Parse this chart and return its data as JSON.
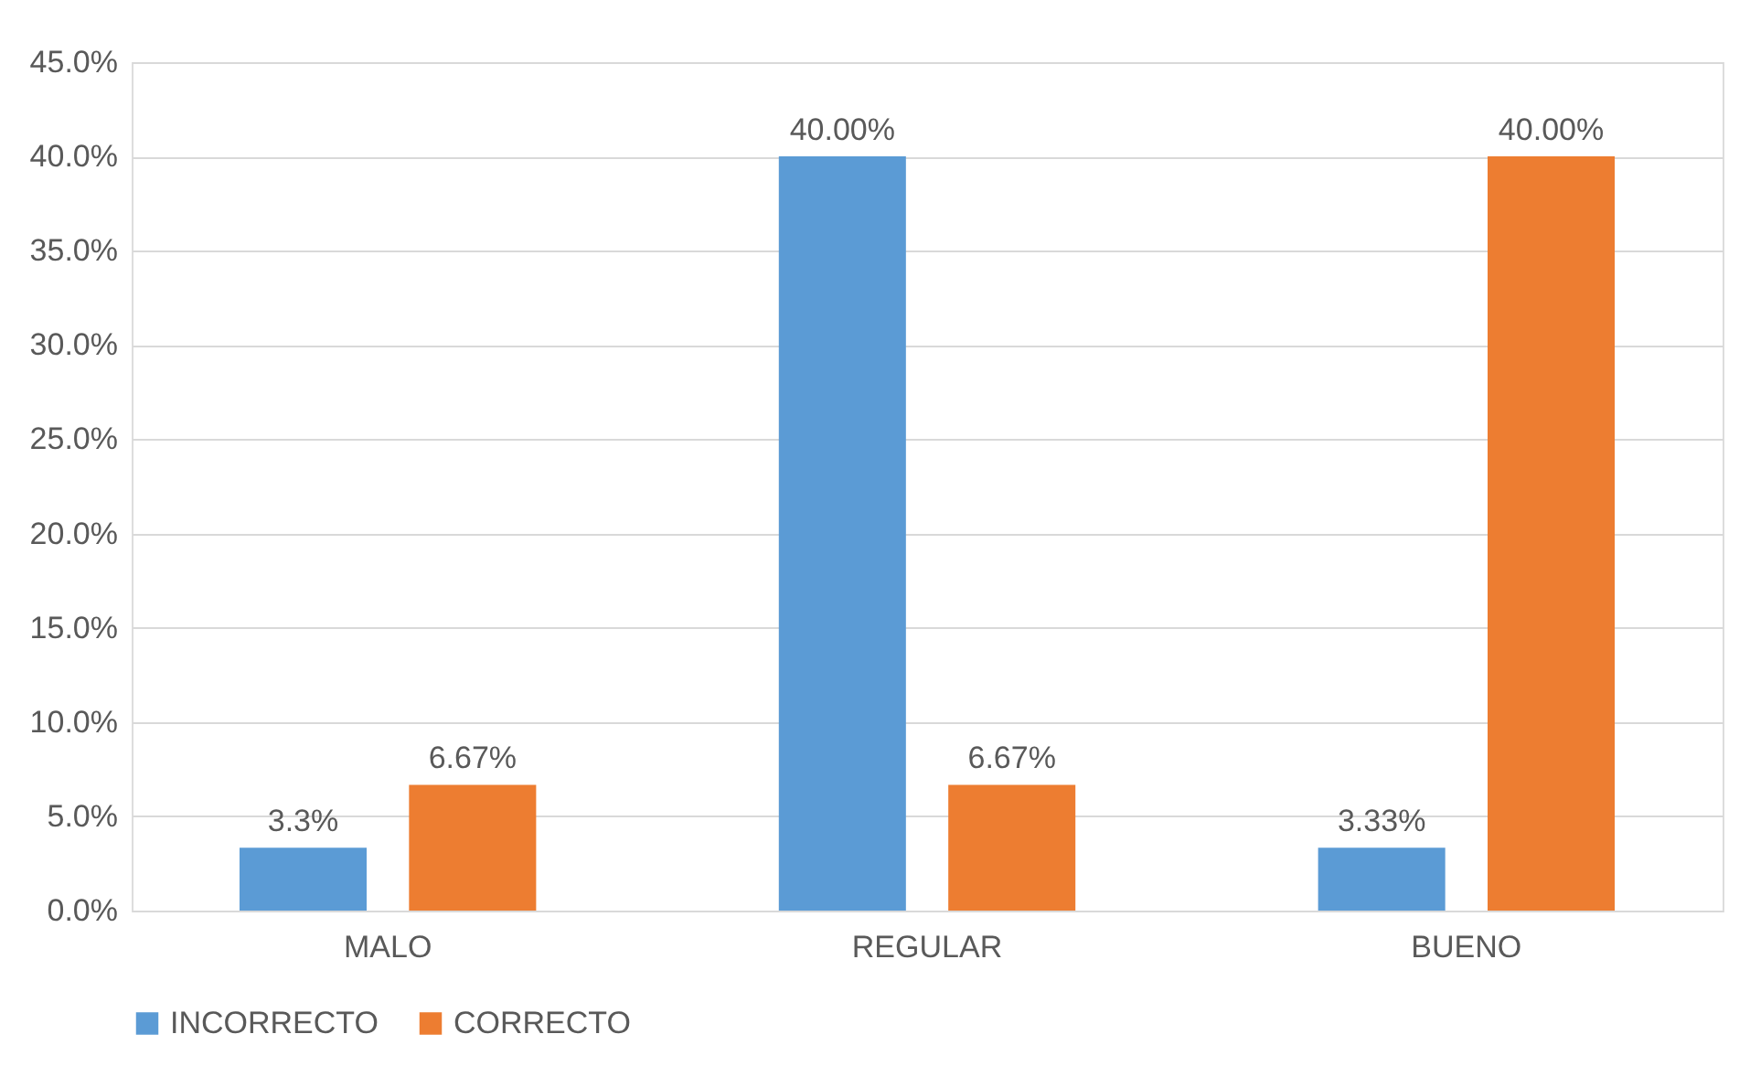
{
  "chart_data": {
    "type": "bar",
    "categories": [
      "MALO",
      "REGULAR",
      "BUENO"
    ],
    "series": [
      {
        "name": "INCORRECTO",
        "color": "#5b9bd5",
        "values": [
          3.33,
          40,
          3.33
        ],
        "value_labels": [
          "3.3%",
          "40.00%",
          "3.33%"
        ]
      },
      {
        "name": "CORRECTO",
        "color": "#ed7d31",
        "values": [
          6.67,
          6.67,
          40
        ],
        "value_labels": [
          "6.67%",
          "6.67%",
          "40.00%"
        ]
      }
    ],
    "ylim": [
      0,
      45
    ],
    "yticks": [
      {
        "value": 0,
        "label": "0.0%"
      },
      {
        "value": 5,
        "label": "5.0%"
      },
      {
        "value": 10,
        "label": "10.0%"
      },
      {
        "value": 15,
        "label": "15.0%"
      },
      {
        "value": 20,
        "label": "20.0%"
      },
      {
        "value": 25,
        "label": "25.0%"
      },
      {
        "value": 30,
        "label": "30.0%"
      },
      {
        "value": 35,
        "label": "35.0%"
      },
      {
        "value": 40,
        "label": "40.0%"
      },
      {
        "value": 45,
        "label": "45.0%"
      }
    ],
    "grid": "y",
    "legend": "bottom"
  }
}
